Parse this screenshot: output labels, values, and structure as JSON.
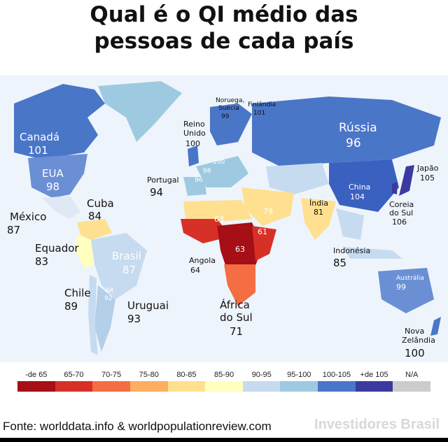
{
  "title_line1": "Qual é o QI médio das",
  "title_line2": "pessoas de cada país",
  "labels": {
    "canada": "Canadá",
    "canada_v": "101",
    "eua": "EUA",
    "eua_v": "98",
    "mexico": "México",
    "mexico_v": "87",
    "cuba": "Cuba",
    "cuba_v": "84",
    "equador": "Equador",
    "equador_v": "83",
    "brasil": "Brasil",
    "brasil_v": "87",
    "ar": "AR",
    "ar_v": "92",
    "chile": "Chile",
    "chile_v": "89",
    "uruguai": "Uruguai",
    "uruguai_v": "93",
    "portugal": "Portugal",
    "portugal_v": "94",
    "reino": "Reino",
    "unido": "Unido",
    "reino_v": "100",
    "noruega": "Noruega,",
    "suecia": "Suécia",
    "suecia_v": "99",
    "finlandia": "Finlândia",
    "finlandia_v": "101",
    "europe_100": "100",
    "europe_98": "98",
    "europe_96": "96",
    "russia": "Rússia",
    "russia_v": "96",
    "china": "China",
    "china_v": "104",
    "japao": "Japão",
    "japao_v": "105",
    "coreia": "Coreia",
    "do_sul": "do Sul",
    "coreia_v": "106",
    "india": "Índia",
    "india_v": "81",
    "indonesia": "Indonésia",
    "indonesia_v": "85",
    "australia": "Austrália",
    "australia_v": "99",
    "nz1": "Nova",
    "nz2": "Zelândia",
    "nz_v": "100",
    "angola": "Angola",
    "angola_v": "64",
    "africa": "África",
    "africa2": "do Sul",
    "africa_v": "71",
    "africa_63a": "63",
    "africa_63b": "63",
    "africa_61": "61",
    "mideast_79": "79"
  },
  "legend": {
    "ranges": [
      "-de 65",
      "65-70",
      "70-75",
      "75-80",
      "80-85",
      "85-90",
      "90-95",
      "95-100",
      "100-105",
      "+de 105",
      "N/A"
    ],
    "colors": [
      "#a50f15",
      "#d73027",
      "#f46d43",
      "#fdae61",
      "#fee090",
      "#ffffbf",
      "#c6dbef",
      "#9ecae1",
      "#4a76c8",
      "#3a3aa0",
      "#cccccc"
    ]
  },
  "source": "Fonte: worlddata.info & worldpopulationreview.com",
  "watermark": "Investidores Brasil"
}
